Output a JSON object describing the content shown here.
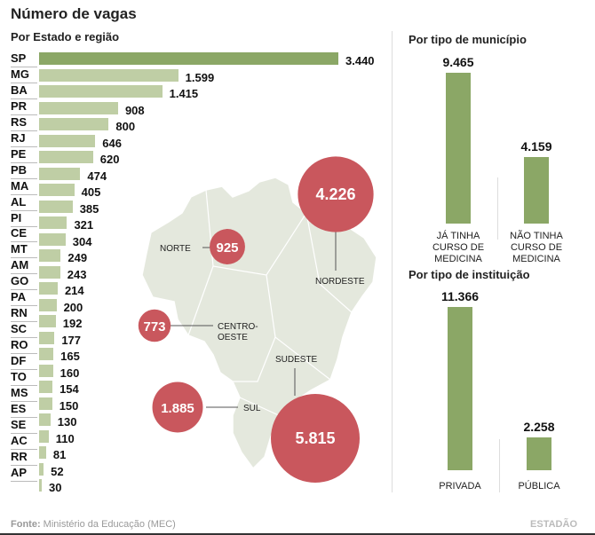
{
  "title": "Número de vagas",
  "chart_data": [
    {
      "type": "bar",
      "orientation": "horizontal",
      "title": "Por Estado e região",
      "categories": [
        "SP",
        "MG",
        "BA",
        "PR",
        "RS",
        "RJ",
        "PE",
        "PB",
        "MA",
        "AL",
        "PI",
        "CE",
        "MT",
        "AM",
        "GO",
        "PA",
        "RN",
        "SC",
        "RO",
        "DF",
        "TO",
        "MS",
        "ES",
        "SE",
        "AC",
        "RR",
        "AP"
      ],
      "values": [
        3440,
        1599,
        1415,
        908,
        800,
        646,
        620,
        474,
        405,
        385,
        321,
        304,
        249,
        243,
        214,
        200,
        192,
        177,
        165,
        160,
        154,
        150,
        130,
        110,
        81,
        52,
        30
      ],
      "value_labels": [
        "3.440",
        "1.599",
        "1.415",
        "908",
        "800",
        "646",
        "620",
        "474",
        "405",
        "385",
        "321",
        "304",
        "249",
        "243",
        "214",
        "200",
        "192",
        "177",
        "165",
        "160",
        "154",
        "150",
        "130",
        "110",
        "81",
        "52",
        "30"
      ],
      "highlight_color": "#8ba766",
      "bar_color": "#bfcea5"
    },
    {
      "type": "bubble-map",
      "regions": [
        {
          "name": "NORTE",
          "value": 925,
          "label": "925"
        },
        {
          "name": "NORDESTE",
          "value": 4226,
          "label": "4.226"
        },
        {
          "name": "CENTRO-OESTE",
          "value": 773,
          "label": "773"
        },
        {
          "name": "SUL",
          "value": 1885,
          "label": "1.885"
        },
        {
          "name": "SUDESTE",
          "value": 5815,
          "label": "5.815"
        }
      ],
      "bubble_color": "#c9575d",
      "map_color": "#e4e8dd"
    },
    {
      "type": "bar",
      "title": "Por tipo de município",
      "categories": [
        "JÁ TINHA CURSO DE MEDICINA",
        "NÃO TINHA CURSO DE MEDICINA"
      ],
      "values": [
        9465,
        4159
      ],
      "value_labels": [
        "9.465",
        "4.159"
      ],
      "bar_color": "#8ba766"
    },
    {
      "type": "bar",
      "title": "Por tipo de instituição",
      "categories": [
        "PRIVADA",
        "PÚBLICA"
      ],
      "values": [
        11366,
        2258
      ],
      "value_labels": [
        "11.366",
        "2.258"
      ],
      "bar_color": "#8ba766"
    }
  ],
  "footer": {
    "source_label": "Fonte:",
    "source": "Ministério da Educação (MEC)",
    "brand": "ESTADÃO"
  }
}
